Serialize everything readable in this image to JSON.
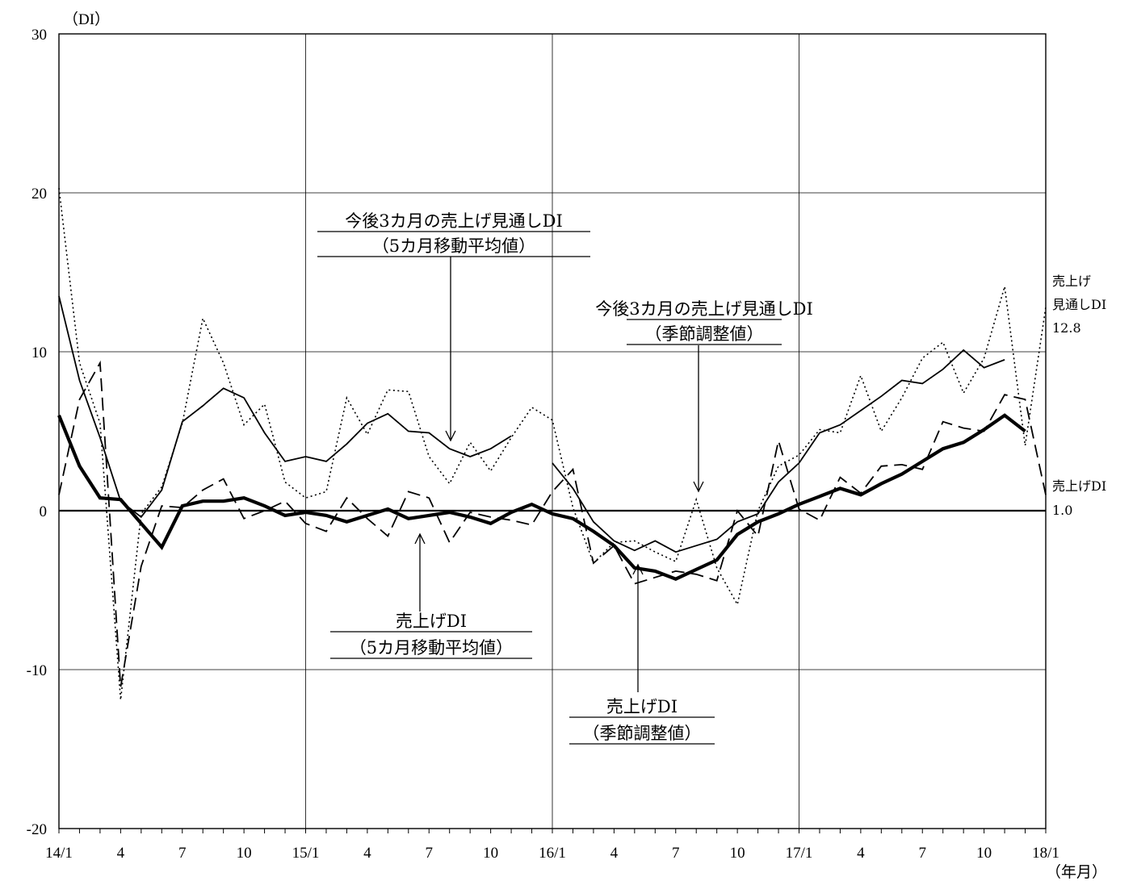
{
  "chart_data": {
    "type": "line",
    "y_unit_label": "（DI）",
    "x_unit_label": "（年月）",
    "ylim": [
      -20,
      30
    ],
    "yticks": [
      30,
      20,
      10,
      0,
      -10,
      -20
    ],
    "ytick_labels": [
      "30",
      "20",
      "10",
      "0",
      "-10",
      "-20"
    ],
    "x_tick_labels": [
      "14/1",
      "4",
      "7",
      "10",
      "15/1",
      "4",
      "7",
      "10",
      "16/1",
      "4",
      "7",
      "10",
      "17/1",
      "4",
      "7",
      "10",
      "18/1"
    ],
    "grid": true,
    "months": [
      "14/1",
      "14/2",
      "14/3",
      "14/4",
      "14/5",
      "14/6",
      "14/7",
      "14/8",
      "14/9",
      "14/10",
      "14/11",
      "14/12",
      "15/1",
      "15/2",
      "15/3",
      "15/4",
      "15/5",
      "15/6",
      "15/7",
      "15/8",
      "15/9",
      "15/10",
      "15/11",
      "15/12",
      "16/1",
      "16/2",
      "16/3",
      "16/4",
      "16/5",
      "16/6",
      "16/7",
      "16/8",
      "16/9",
      "16/10",
      "16/11",
      "16/12",
      "17/1",
      "17/2",
      "17/3",
      "17/4",
      "17/5",
      "17/6",
      "17/7",
      "17/8",
      "17/9",
      "17/10",
      "17/11",
      "17/12",
      "18/1"
    ],
    "series": [
      {
        "key": "outlook_sa",
        "values": [
          20.3,
          9.3,
          5.5,
          -11.9,
          -0.2,
          1.5,
          5.5,
          12.1,
          9.3,
          5.4,
          6.7,
          1.8,
          0.8,
          1.2,
          7.1,
          4.8,
          7.6,
          7.5,
          3.4,
          1.7,
          4.3,
          2.5,
          4.6,
          6.5,
          5.7,
          0.2,
          -3.3,
          -2.0,
          -1.9,
          -2.6,
          -3.2,
          0.7,
          -3.6,
          -5.9,
          0.0,
          2.8,
          3.5,
          5.1,
          4.9,
          8.5,
          5.0,
          7.1,
          9.6,
          10.6,
          7.4,
          9.6,
          14.1,
          4.1,
          12.8
        ],
        "style": "dotted"
      },
      {
        "key": "outlook_ma",
        "values": [
          13.5,
          8.2,
          4.6,
          0.6,
          -0.4,
          1.3,
          5.6,
          6.6,
          7.7,
          7.1,
          4.9,
          3.1,
          3.4,
          3.1,
          4.2,
          5.5,
          6.1,
          5.0,
          4.9,
          3.9,
          3.4,
          3.9,
          4.7,
          null,
          3.0,
          1.4,
          -0.7,
          -1.9,
          -2.5,
          -1.9,
          -2.6,
          -2.2,
          -1.8,
          -0.7,
          -0.2,
          1.8,
          3.0,
          4.9,
          5.4,
          6.3,
          7.2,
          8.2,
          8.0,
          8.9,
          10.1,
          9.0,
          9.5,
          null,
          null
        ],
        "style": "solid-thin"
      },
      {
        "key": "sales_sa",
        "values": [
          1.0,
          7.0,
          9.3,
          -11.1,
          -3.5,
          0.3,
          0.2,
          1.3,
          2.0,
          -0.5,
          0.0,
          0.6,
          -0.8,
          -1.3,
          0.8,
          -0.5,
          -1.6,
          1.2,
          0.8,
          -2.0,
          -0.1,
          -0.4,
          -0.6,
          -0.9,
          1.2,
          2.6,
          -3.3,
          -2.2,
          -4.6,
          -4.2,
          -3.8,
          -4.0,
          -4.4,
          0.0,
          -1.6,
          4.4,
          0.1,
          -0.6,
          2.1,
          1.1,
          2.8,
          2.9,
          2.6,
          5.6,
          5.2,
          5.0,
          7.3,
          7.0,
          1.0
        ],
        "style": "dashed"
      },
      {
        "key": "sales_ma",
        "values": [
          6.0,
          2.8,
          0.8,
          0.7,
          -0.8,
          -2.3,
          0.3,
          0.6,
          0.6,
          0.8,
          0.3,
          -0.3,
          -0.1,
          -0.3,
          -0.7,
          -0.3,
          0.1,
          -0.5,
          -0.3,
          -0.1,
          -0.4,
          -0.8,
          -0.1,
          0.4,
          -0.2,
          -0.5,
          -1.3,
          -2.2,
          -3.6,
          -3.8,
          -4.3,
          -3.7,
          -3.1,
          -1.5,
          -0.7,
          -0.2,
          0.4,
          0.9,
          1.4,
          1.0,
          1.7,
          2.3,
          3.1,
          3.9,
          4.3,
          5.1,
          6.0,
          5.0,
          null
        ],
        "style": "solid-bold"
      }
    ],
    "annotations": {
      "outlook_ma": [
        "今後3カ月の売上げ見通しDI",
        "（5カ月移動平均値）"
      ],
      "outlook_sa": [
        "今後3カ月の売上げ見通しDI",
        "（季節調整値）"
      ],
      "sales_ma": [
        "売上げDI",
        "（5カ月移動平均値）"
      ],
      "sales_sa": [
        "売上げDI",
        "（季節調整値）"
      ]
    },
    "end_labels": {
      "outlook": [
        "売上げ",
        "見通しDI",
        "12.8"
      ],
      "sales": [
        "売上げDI",
        "1.0"
      ]
    }
  }
}
